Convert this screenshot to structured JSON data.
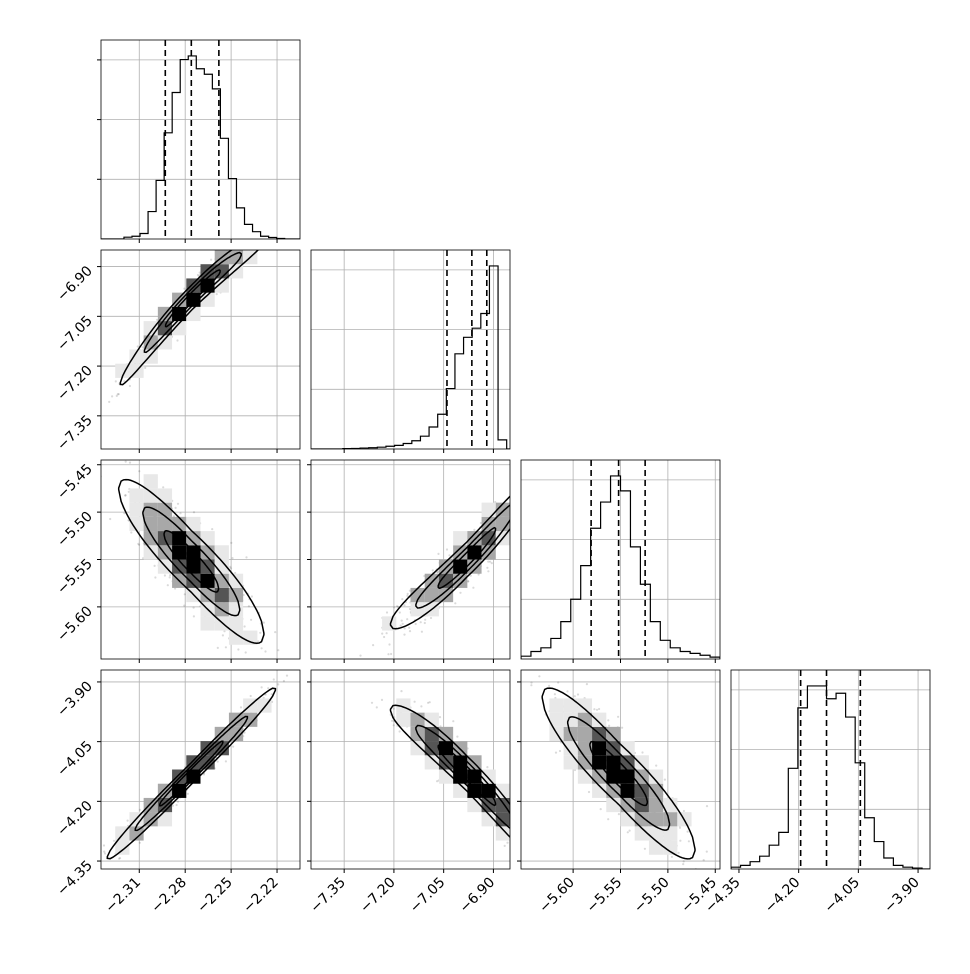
{
  "chart_data": {
    "type": "corner",
    "grid": true,
    "parameters": [
      {
        "range": [
          -2.335,
          -2.205
        ],
        "ticks": [
          -2.31,
          -2.28,
          -2.25,
          -2.22
        ],
        "tick_labels": [
          "−2.31",
          "−2.28",
          "−2.25",
          "−2.22"
        ],
        "quantiles": [
          -2.293,
          -2.276,
          -2.258
        ],
        "hist": {
          "edges_range": [
            -2.32,
            -2.215
          ],
          "counts": [
            0.01,
            0.015,
            0.03,
            0.15,
            0.32,
            0.58,
            0.8,
            0.98,
            1.0,
            0.93,
            0.9,
            0.82,
            0.55,
            0.33,
            0.17,
            0.08,
            0.04,
            0.015,
            0.008,
            0.003
          ]
        }
      },
      {
        "range": [
          -7.45,
          -6.85
        ],
        "ticks": [
          -7.35,
          -7.2,
          -7.05,
          -6.9
        ],
        "tick_labels": [
          "−7.35",
          "−7.20",
          "−7.05",
          "−6.90"
        ],
        "quantiles": [
          -7.04,
          -6.965,
          -6.92
        ],
        "hist": {
          "edges_range": [
            -7.38,
            -6.86
          ],
          "counts": [
            0.0,
            0.002,
            0.003,
            0.005,
            0.007,
            0.01,
            0.015,
            0.02,
            0.03,
            0.045,
            0.07,
            0.12,
            0.19,
            0.33,
            0.52,
            0.61,
            0.66,
            0.74,
            1.0,
            0.05
          ]
        }
      },
      {
        "range": [
          -5.655,
          -5.445
        ],
        "ticks": [
          -5.6,
          -5.55,
          -5.5,
          -5.45
        ],
        "tick_labels": [
          "−5.60",
          "−5.55",
          "−5.50",
          "−5.45"
        ],
        "quantiles": [
          -5.581,
          -5.552,
          -5.524
        ],
        "hist": {
          "edges_range": [
            -5.655,
            -5.445
          ],
          "counts": [
            0.015,
            0.04,
            0.06,
            0.11,
            0.2,
            0.32,
            0.5,
            0.7,
            0.84,
            0.98,
            0.9,
            0.6,
            0.4,
            0.2,
            0.1,
            0.06,
            0.04,
            0.03,
            0.02,
            0.01
          ]
        }
      },
      {
        "range": [
          -4.37,
          -3.87
        ],
        "ticks": [
          -4.35,
          -4.2,
          -4.05,
          -3.9
        ],
        "tick_labels": [
          "−4.35",
          "−4.20",
          "−4.05",
          "−3.90"
        ],
        "quantiles": [
          -4.195,
          -4.13,
          -4.045
        ],
        "hist": {
          "edges_range": [
            -4.37,
            -3.89
          ],
          "counts": [
            0.01,
            0.02,
            0.04,
            0.07,
            0.13,
            0.2,
            0.55,
            0.88,
            1.0,
            1.0,
            0.93,
            0.96,
            0.83,
            0.58,
            0.28,
            0.15,
            0.06,
            0.02,
            0.01,
            0.005
          ]
        }
      }
    ],
    "pairs": [
      {
        "row": 1,
        "col": 0,
        "mean": [
          -2.275,
          -6.99
        ],
        "direction": 1,
        "curvature": -0.25,
        "spread": 0.035,
        "length": 0.95
      },
      {
        "row": 2,
        "col": 0,
        "mean": [
          -2.276,
          -5.552
        ],
        "direction": -1,
        "curvature": 0.0,
        "spread": 0.09,
        "length": 0.95
      },
      {
        "row": 2,
        "col": 1,
        "mean": [
          -6.98,
          -5.55
        ],
        "direction": 1,
        "curvature": 0.18,
        "spread": 0.05,
        "length": 1.0
      },
      {
        "row": 3,
        "col": 0,
        "mean": [
          -2.276,
          -4.13
        ],
        "direction": 1,
        "curvature": 0.0,
        "spread": 0.03,
        "length": 1.1
      },
      {
        "row": 3,
        "col": 1,
        "mean": [
          -6.98,
          -4.13
        ],
        "direction": -1,
        "curvature": -0.2,
        "spread": 0.05,
        "length": 1.0
      },
      {
        "row": 3,
        "col": 2,
        "mean": [
          -5.552,
          -4.13
        ],
        "direction": -1,
        "curvature": 0.0,
        "spread": 0.09,
        "length": 1.0
      }
    ],
    "legend": "none",
    "colors": {
      "points": "#333333",
      "contour": "#000000",
      "fill_light": "#e8e8e8",
      "fill_mid": "#a8a8a8",
      "fill_dark": "#555555",
      "peak": "#000000"
    }
  }
}
